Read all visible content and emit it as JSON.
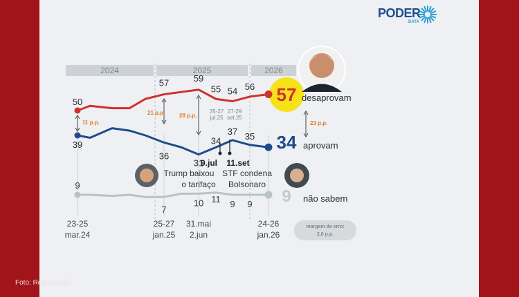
{
  "logo": {
    "name": "PODER",
    "sub": "DATA"
  },
  "credit": "Foto: Reprodução",
  "colors": {
    "approve": "#1f4b8c",
    "disapprove": "#d0312d",
    "unsure": "#b9c2c4",
    "highlight": "#f7e21a",
    "diff": "#e07b1a",
    "frame": "#a0141a"
  },
  "chart_data": {
    "type": "line",
    "years": [
      "2024",
      "2025",
      "2026"
    ],
    "series": [
      {
        "name": "desaprovam",
        "final": "57",
        "points": [
          {
            "x": "23-25 mar.24",
            "y": 50,
            "label": "50"
          },
          {
            "y": 52
          },
          {
            "y": 51
          },
          {
            "y": 51
          },
          {
            "y": 55
          },
          {
            "x": "25-27 jan.25",
            "y": 57,
            "label": "57"
          },
          {
            "y": 58
          },
          {
            "x": "31.mai 2.jun",
            "y": 59,
            "label": "59"
          },
          {
            "y": 55,
            "label": "55"
          },
          {
            "y": 54,
            "label": "54"
          },
          {
            "y": 56,
            "label": "56"
          },
          {
            "x": "24-26 jan.26",
            "y": 57,
            "label": "57"
          }
        ]
      },
      {
        "name": "aprovam",
        "final": "34",
        "points": [
          {
            "x": "23-25 mar.24",
            "y": 39,
            "label": "39"
          },
          {
            "y": 38
          },
          {
            "y": 42
          },
          {
            "y": 41
          },
          {
            "y": 39
          },
          {
            "x": "25-27 jan.25",
            "y": 36,
            "label": "36"
          },
          {
            "y": 34
          },
          {
            "x": "31.mai 2.jun",
            "y": 31,
            "label": "31"
          },
          {
            "y": 34,
            "label": "34"
          },
          {
            "y": 37,
            "label": "37"
          },
          {
            "y": 35,
            "label": "35"
          },
          {
            "x": "24-26 jan.26",
            "y": 34,
            "label": "34"
          }
        ]
      },
      {
        "name": "não sabem",
        "final": "9",
        "points": [
          {
            "x": "23-25 mar.24",
            "y": 9,
            "label": "9"
          },
          {
            "y": 9
          },
          {
            "y": 8
          },
          {
            "y": 9
          },
          {
            "y": 7
          },
          {
            "x": "25-27 jan.25",
            "y": 7,
            "label": "7"
          },
          {
            "y": 10
          },
          {
            "x": "31.mai 2.jun",
            "y": 10,
            "label": "10"
          },
          {
            "y": 11,
            "label": "11"
          },
          {
            "y": 9,
            "label": "9"
          },
          {
            "y": 9,
            "label": "9"
          },
          {
            "x": "24-26 jan.26",
            "y": 9,
            "label": "9"
          }
        ]
      }
    ],
    "x_labels": [
      {
        "index": 0,
        "lines": [
          "23-25",
          "mar.24"
        ]
      },
      {
        "index": 5,
        "lines": [
          "25-27",
          "jan.25"
        ]
      },
      {
        "index": 7,
        "lines": [
          "31.mai",
          "2.jun"
        ]
      },
      {
        "index": 11,
        "lines": [
          "24-26",
          "jan.26"
        ]
      }
    ],
    "differences": [
      {
        "text": "11 p.p.",
        "index": 0
      },
      {
        "text": "21 p.p.",
        "index": 5
      },
      {
        "text": "28 p.p.",
        "index": 7
      },
      {
        "text": "23 p.p.",
        "index": 11
      }
    ],
    "annotations": [
      {
        "lines": [
          "9.jul",
          "Trump baixou",
          "o tarifaço"
        ],
        "index": 8.5
      },
      {
        "lines": [
          "11.set",
          "STF condena",
          "Bolsonaro"
        ],
        "index": 9.5
      },
      {
        "lines": [
          "25-27",
          "jul.25"
        ],
        "index": 8
      },
      {
        "lines": [
          "27-29",
          "set.25"
        ],
        "index": 9
      }
    ],
    "note": [
      "margem de erro:",
      "2,0 p.p."
    ]
  }
}
